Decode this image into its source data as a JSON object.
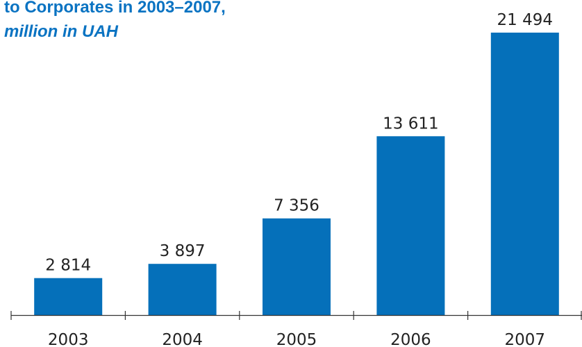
{
  "chart_data": {
    "type": "bar",
    "title": "to Corporates in 2003–2007,",
    "subtitle": "million in UAH",
    "categories": [
      "2003",
      "2004",
      "2005",
      "2006",
      "2007"
    ],
    "values": [
      2814,
      3897,
      7356,
      13611,
      21494
    ],
    "value_labels": [
      "2 814",
      "3 897",
      "7 356",
      "13 611",
      "21 494"
    ],
    "xlabel": "",
    "ylabel": "",
    "ylim": [
      0,
      23000
    ],
    "grid": false,
    "legend": "none",
    "bar_color": "#0570ba",
    "title_color": "#0a73c2"
  }
}
